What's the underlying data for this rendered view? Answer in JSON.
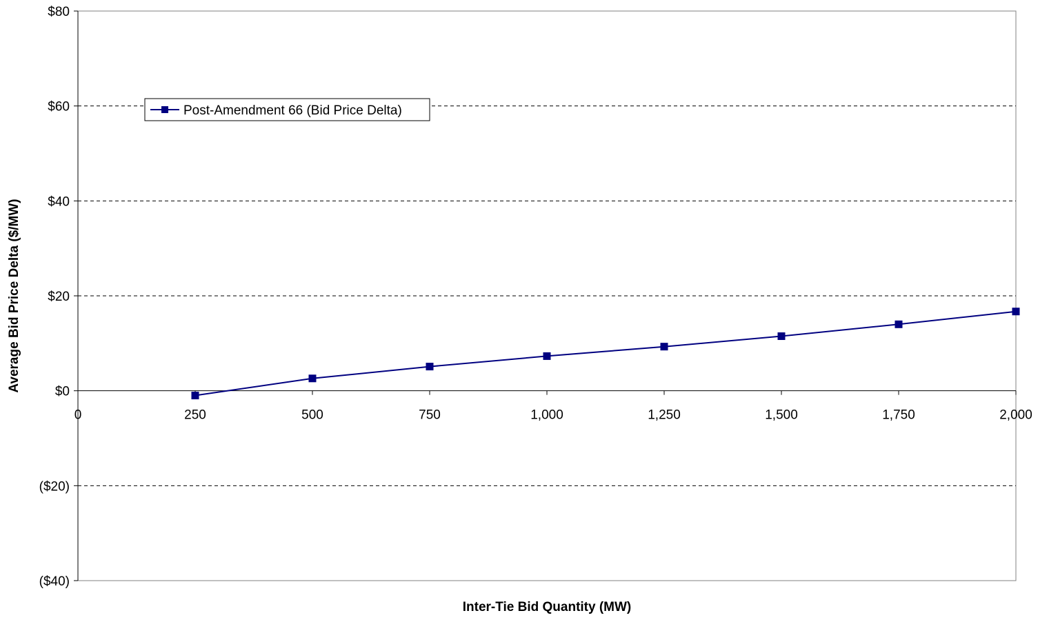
{
  "chart_data": {
    "type": "line",
    "title": "",
    "xlabel": "Inter-Tie Bid Quantity (MW)",
    "ylabel": "Average Bid Price Delta ($/MW)",
    "xlim": [
      0,
      2000
    ],
    "ylim": [
      -40,
      80
    ],
    "x_ticks": [
      {
        "value": 0,
        "label": "0"
      },
      {
        "value": 250,
        "label": "250"
      },
      {
        "value": 500,
        "label": "500"
      },
      {
        "value": 750,
        "label": "750"
      },
      {
        "value": 1000,
        "label": "1,000"
      },
      {
        "value": 1250,
        "label": "1,250"
      },
      {
        "value": 1500,
        "label": "1,500"
      },
      {
        "value": 1750,
        "label": "1,750"
      },
      {
        "value": 2000,
        "label": "2,000"
      }
    ],
    "y_ticks": [
      {
        "value": 80,
        "label": "$80"
      },
      {
        "value": 60,
        "label": "$60"
      },
      {
        "value": 40,
        "label": "$40"
      },
      {
        "value": 20,
        "label": "$20"
      },
      {
        "value": 0,
        "label": "$0"
      },
      {
        "value": -20,
        "label": "($20)"
      },
      {
        "value": -40,
        "label": "($40)"
      }
    ],
    "grid": "horizontal-dashed",
    "legend_position": "top-left",
    "series": [
      {
        "name": "Post-Amendment 66 (Bid Price Delta)",
        "color": "#000080",
        "marker": "square",
        "x": [
          250,
          500,
          750,
          1000,
          1250,
          1500,
          1750,
          2000
        ],
        "y": [
          -1.0,
          2.6,
          5.1,
          7.3,
          9.3,
          11.5,
          14.0,
          16.7
        ]
      }
    ]
  }
}
